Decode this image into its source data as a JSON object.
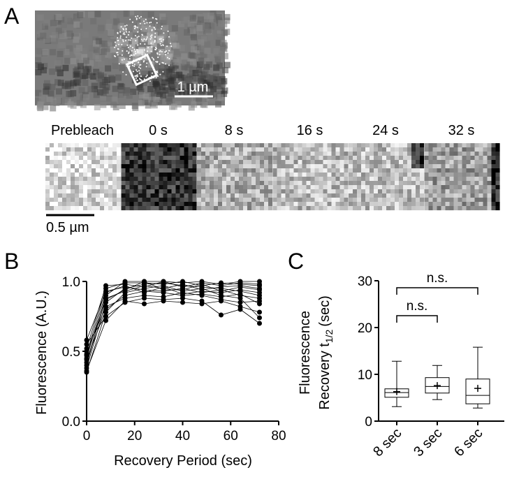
{
  "panels": {
    "a": "A",
    "b": "B",
    "c": "C"
  },
  "images": {
    "scale_bar_top": "1 µm",
    "scale_bar_bottom": "0.5 µm",
    "frames": [
      "Prebleach",
      "0 s",
      "8 s",
      "16 s",
      "24 s",
      "32 s"
    ]
  },
  "chart_data": [
    {
      "type": "line",
      "xlabel": "Recovery Period (sec)",
      "ylabel": "Fluorescence (A.U.)",
      "color": "#000000",
      "x": [
        0,
        8,
        16,
        24,
        32,
        40,
        48,
        56,
        64,
        72
      ],
      "xlim": [
        0,
        80
      ],
      "xticks": [
        0,
        20,
        40,
        60,
        80
      ],
      "ylim": [
        0,
        1
      ],
      "yticks": [
        {
          "value": 0,
          "label": "0.0"
        },
        {
          "value": 0.5,
          "label": "0.5"
        },
        {
          "value": 1,
          "label": "1.0"
        }
      ],
      "series": [
        {
          "values": [
            0.35,
            0.78,
            0.92,
            0.95,
            0.97,
            0.93,
            0.95,
            0.9,
            0.88,
            0.74
          ]
        },
        {
          "values": [
            0.38,
            0.85,
            0.95,
            0.98,
            0.99,
            0.97,
            0.96,
            0.95,
            0.93,
            0.9
          ]
        },
        {
          "values": [
            0.4,
            0.9,
            1.0,
            1.0,
            1.0,
            0.99,
            1.0,
            0.98,
            1.0,
            1.0
          ]
        },
        {
          "values": [
            0.42,
            0.88,
            0.93,
            0.97,
            0.95,
            0.98,
            0.94,
            0.96,
            0.97,
            0.95
          ]
        },
        {
          "values": [
            0.45,
            0.92,
            0.97,
            0.92,
            0.96,
            0.91,
            0.93,
            0.92,
            0.94,
            0.92
          ]
        },
        {
          "values": [
            0.48,
            0.95,
            0.99,
            0.99,
            0.98,
            1.0,
            0.97,
            0.99,
            0.98,
            0.97
          ]
        },
        {
          "values": [
            0.5,
            0.82,
            0.88,
            0.9,
            0.89,
            0.92,
            0.9,
            0.87,
            0.85,
            0.86
          ]
        },
        {
          "values": [
            0.52,
            0.97,
            0.98,
            0.96,
            1.0,
            0.96,
            0.99,
            0.97,
            0.99,
            0.98
          ]
        },
        {
          "values": [
            0.55,
            0.75,
            0.85,
            0.88,
            0.87,
            0.88,
            0.86,
            0.76,
            0.8,
            0.7
          ]
        },
        {
          "values": [
            0.58,
            0.93,
            0.96,
            0.94,
            0.93,
            0.95,
            0.92,
            0.94,
            0.9,
            0.88
          ]
        },
        {
          "values": [
            0.44,
            0.8,
            0.9,
            0.93,
            0.92,
            0.9,
            0.91,
            0.89,
            0.91,
            0.84
          ]
        },
        {
          "values": [
            0.36,
            0.72,
            0.86,
            0.84,
            0.86,
            0.85,
            0.84,
            0.86,
            0.82,
            0.78
          ]
        },
        {
          "values": [
            0.47,
            0.87,
            0.94,
            1.0,
            0.94,
            0.94,
            0.98,
            0.93,
            0.96,
            0.94
          ]
        }
      ]
    },
    {
      "type": "box",
      "ylabel": {
        "line1": "Fluorescence",
        "line2": "Recovery t",
        "sub": "1/2",
        "unit": "(sec)"
      },
      "categories": [
        "8 sec",
        "3 sec",
        "6 sec"
      ],
      "ylim": [
        0,
        30
      ],
      "yticks": [
        0,
        10,
        20,
        30
      ],
      "boxes": [
        {
          "min": 3.1,
          "q1": 5.1,
          "median": 6.1,
          "q3": 6.9,
          "max": 12.8,
          "mean": 6.3
        },
        {
          "min": 4.6,
          "q1": 6.0,
          "median": 7.4,
          "q3": 9.3,
          "max": 11.9,
          "mean": 7.6
        },
        {
          "min": 2.8,
          "q1": 3.7,
          "median": 5.5,
          "q3": 9.0,
          "max": 15.8,
          "mean": 7.0
        }
      ],
      "annotations": [
        "n.s.",
        "n.s."
      ]
    }
  ]
}
